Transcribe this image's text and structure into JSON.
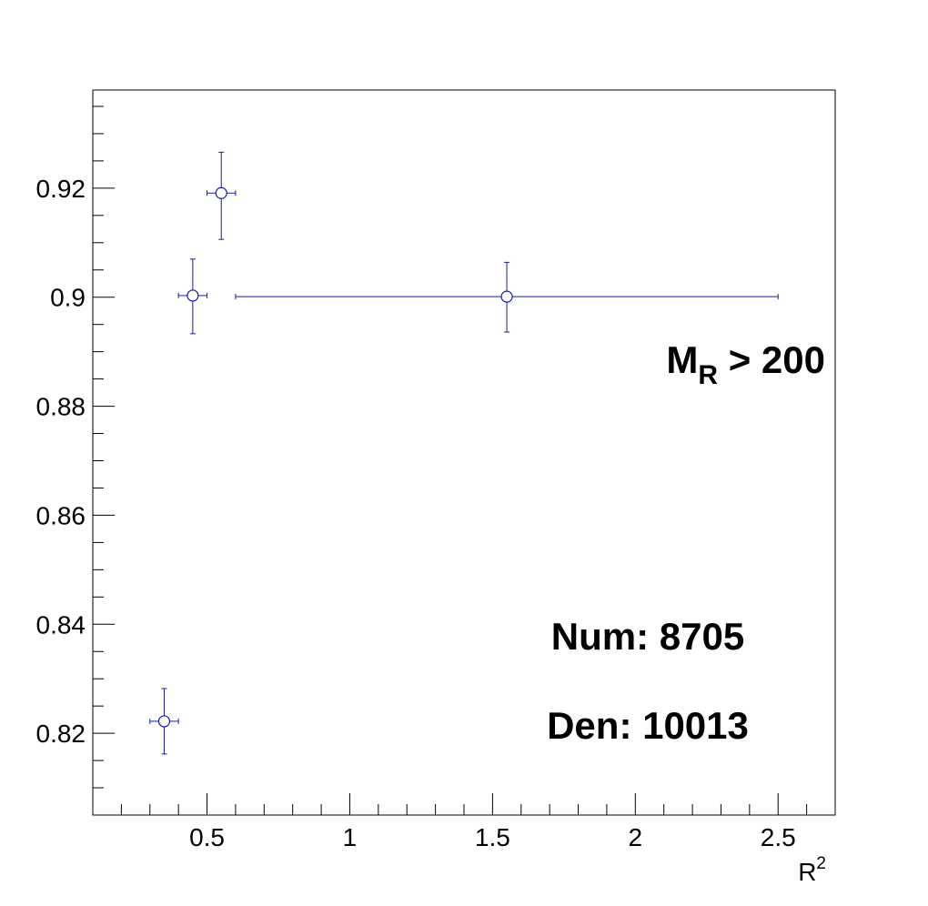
{
  "chart_data": {
    "type": "scatter",
    "title": "",
    "xlabel": "R",
    "xlabel_superscript": "2",
    "ylabel": "",
    "xlim": [
      0.1,
      2.7
    ],
    "ylim": [
      0.805,
      0.938
    ],
    "x_ticks": [
      0.5,
      1,
      1.5,
      2,
      2.5
    ],
    "x_tick_labels": [
      "0.5",
      "1",
      "1.5",
      "2",
      "2.5"
    ],
    "y_ticks": [
      0.82,
      0.84,
      0.86,
      0.88,
      0.9,
      0.92
    ],
    "y_tick_labels": [
      "0.82",
      "0.84",
      "0.86",
      "0.88",
      "0.9",
      "0.92"
    ],
    "grid": false,
    "marker_color": "#1a1aaa",
    "points": [
      {
        "x": 0.35,
        "y": 0.8222,
        "xerr": 0.05,
        "yerr_low": 0.006,
        "yerr_high": 0.006
      },
      {
        "x": 0.45,
        "y": 0.9003,
        "xerr": 0.05,
        "yerr_low": 0.007,
        "yerr_high": 0.0067
      },
      {
        "x": 0.55,
        "y": 0.9191,
        "xerr": 0.05,
        "yerr_low": 0.0085,
        "yerr_high": 0.0075
      },
      {
        "x": 1.55,
        "y": 0.9001,
        "xerr": 0.95,
        "yerr_low": 0.0065,
        "yerr_high": 0.0063
      }
    ],
    "annotations": {
      "cut_main": "M",
      "cut_sub": "R",
      "cut_rest": " > 200",
      "num": "Num: 8705",
      "den": "Den: 10013"
    }
  }
}
